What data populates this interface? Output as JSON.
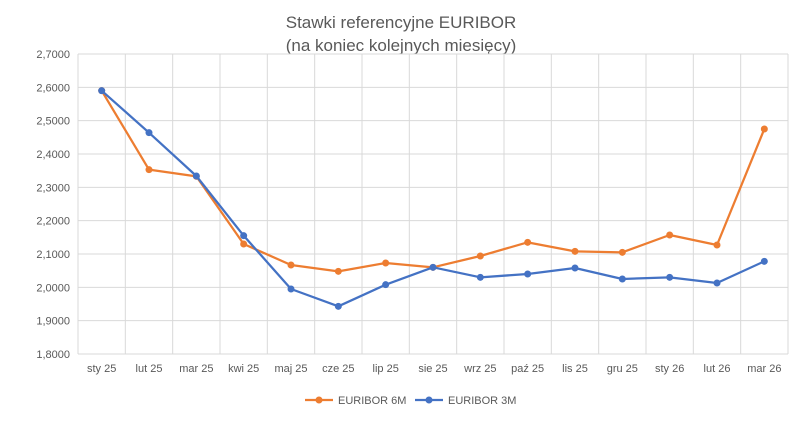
{
  "chart_data": {
    "type": "line",
    "title": "Stawki referencyjne EURIBOR",
    "subtitle": "(na koniec kolejnych miesięcy)",
    "categories": [
      "sty 25",
      "lut 25",
      "mar 25",
      "kwi 25",
      "maj 25",
      "cze 25",
      "lip 25",
      "sie 25",
      "wrz 25",
      "paź 25",
      "lis 25",
      "gru 25",
      "sty 26",
      "lut 26",
      "mar 26"
    ],
    "ylim": [
      1.8,
      2.7
    ],
    "yticks": [
      "1,8000",
      "1,9000",
      "2,0000",
      "2,1000",
      "2,2000",
      "2,3000",
      "2,4000",
      "2,5000",
      "2,6000",
      "2,7000"
    ],
    "grid": "horizontal",
    "legend_position": "bottom",
    "series": [
      {
        "name": "EURIBOR 6M",
        "color": "#ED7D31",
        "values": [
          2.59,
          2.353,
          2.333,
          2.13,
          2.067,
          2.048,
          2.073,
          2.06,
          2.094,
          2.135,
          2.108,
          2.105,
          2.157,
          2.127,
          2.475
        ]
      },
      {
        "name": "EURIBOR 3M",
        "color": "#4472C4",
        "values": [
          2.59,
          2.464,
          2.334,
          2.155,
          1.995,
          1.943,
          2.008,
          2.06,
          2.03,
          2.04,
          2.058,
          2.025,
          2.03,
          2.013,
          2.078
        ]
      }
    ]
  }
}
